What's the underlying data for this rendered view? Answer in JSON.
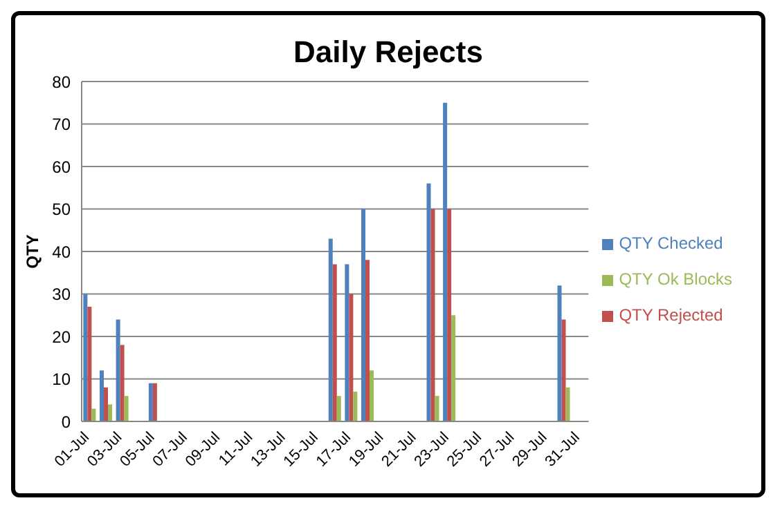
{
  "chart_data": {
    "type": "bar",
    "title": "Daily Rejects",
    "ylabel": "QTY",
    "categories": [
      "01-Jul",
      null,
      "03-Jul",
      null,
      "05-Jul",
      null,
      "07-Jul",
      null,
      "09-Jul",
      null,
      "11-Jul",
      null,
      "13-Jul",
      null,
      "15-Jul",
      null,
      "17-Jul",
      null,
      "19-Jul",
      null,
      "21-Jul",
      null,
      "23-Jul",
      null,
      "25-Jul",
      null,
      "27-Jul",
      null,
      "29-Jul",
      null,
      "31-Jul"
    ],
    "series": [
      {
        "name": "QTY Checked",
        "color": "#4f81bd",
        "values": [
          30,
          12,
          24,
          null,
          9,
          null,
          null,
          null,
          null,
          null,
          null,
          null,
          null,
          null,
          null,
          43,
          37,
          50,
          null,
          null,
          null,
          56,
          75,
          null,
          null,
          null,
          null,
          null,
          null,
          32,
          null
        ]
      },
      {
        "name": "QTY Rejected",
        "color": "#c0504d",
        "values": [
          27,
          8,
          18,
          null,
          9,
          null,
          null,
          null,
          null,
          null,
          null,
          null,
          null,
          null,
          null,
          37,
          30,
          38,
          null,
          null,
          null,
          50,
          50,
          null,
          null,
          null,
          null,
          null,
          null,
          24,
          null
        ]
      },
      {
        "name": "QTY Ok Blocks",
        "color": "#9bbb59",
        "values": [
          3,
          4,
          6,
          null,
          null,
          null,
          null,
          null,
          null,
          null,
          null,
          null,
          null,
          null,
          null,
          6,
          7,
          12,
          null,
          null,
          null,
          6,
          25,
          null,
          null,
          null,
          null,
          null,
          null,
          8,
          null
        ]
      }
    ],
    "ylim": [
      0,
      80
    ],
    "yticks": [
      0,
      10,
      20,
      30,
      40,
      50,
      60,
      70,
      80
    ],
    "grid": "y",
    "legend": "right"
  }
}
